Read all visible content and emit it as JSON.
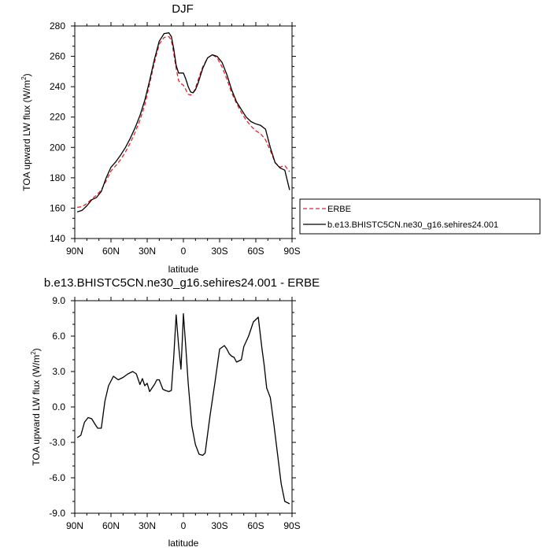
{
  "chart_data": [
    {
      "type": "line",
      "title": "DJF",
      "xlabel": "latitude",
      "ylabel_main": "TOA upward LW flux (W/m",
      "ylabel_sup": "2",
      "ylabel_close": ")",
      "xlim": [
        -90,
        90
      ],
      "ylim": [
        140,
        280
      ],
      "xticks": [
        {
          "value": -90,
          "label": "90N"
        },
        {
          "value": -60,
          "label": "60N"
        },
        {
          "value": -30,
          "label": "30N"
        },
        {
          "value": 0,
          "label": "0"
        },
        {
          "value": 30,
          "label": "30S"
        },
        {
          "value": 60,
          "label": "60S"
        },
        {
          "value": 90,
          "label": "90S"
        }
      ],
      "yticks": [
        {
          "value": 140,
          "label": "140"
        },
        {
          "value": 160,
          "label": "160"
        },
        {
          "value": 180,
          "label": "180"
        },
        {
          "value": 200,
          "label": "200"
        },
        {
          "value": 220,
          "label": "220"
        },
        {
          "value": 240,
          "label": "240"
        },
        {
          "value": 260,
          "label": "260"
        },
        {
          "value": 280,
          "label": "280"
        }
      ],
      "legend": [
        {
          "label": "ERBE",
          "color": "#e8202a",
          "dash": true
        },
        {
          "label": "b.e13.BHISTC5CN.ne30_g16.sehires24.001",
          "color": "#000000",
          "dash": false
        }
      ],
      "series": [
        {
          "name": "ERBE",
          "color": "#e8202a",
          "dash": true,
          "x": [
            -88,
            -84,
            -80,
            -76,
            -72,
            -68,
            -64,
            -60,
            -56,
            -52,
            -48,
            -44,
            -40,
            -36,
            -32,
            -28,
            -24,
            -20,
            -16,
            -12,
            -10,
            -8,
            -6,
            -4,
            -2,
            0,
            2,
            4,
            6,
            8,
            10,
            12,
            16,
            20,
            24,
            28,
            32,
            36,
            40,
            44,
            48,
            52,
            56,
            60,
            64,
            68,
            72,
            76,
            80,
            84,
            88
          ],
          "values": [
            160.5,
            161,
            163,
            166,
            168.5,
            172,
            178,
            184.5,
            188,
            192,
            197,
            203,
            210,
            218,
            228,
            242,
            256,
            268,
            272.5,
            273,
            270.5,
            262,
            252,
            244,
            242,
            241,
            238,
            235,
            234.5,
            236,
            239,
            244,
            253,
            259,
            261,
            259,
            253,
            245,
            236,
            229,
            223,
            218,
            214,
            211,
            209,
            205,
            198,
            190,
            187,
            188,
            184
          ]
        },
        {
          "name": "b.e13.BHISTC5CN.ne30_g16.sehires24.001",
          "color": "#000000",
          "dash": false,
          "x": [
            -88,
            -84,
            -80,
            -76,
            -72,
            -68,
            -64,
            -60,
            -56,
            -52,
            -48,
            -44,
            -40,
            -36,
            -32,
            -28,
            -24,
            -20,
            -16,
            -12,
            -10,
            -8,
            -6,
            -4,
            -2,
            0,
            2,
            4,
            6,
            8,
            10,
            12,
            16,
            20,
            24,
            28,
            32,
            36,
            40,
            44,
            48,
            52,
            56,
            60,
            64,
            68,
            72,
            76,
            80,
            84,
            88
          ],
          "values": [
            157.5,
            158.5,
            161.5,
            165.5,
            167,
            171,
            180,
            187,
            190.5,
            195,
            200,
            206,
            213,
            221,
            231,
            244,
            258,
            270,
            275,
            275.5,
            273,
            265,
            254,
            249,
            249,
            249,
            245,
            240,
            236.5,
            236,
            238,
            242,
            252,
            259,
            261,
            260,
            256,
            248,
            238,
            230,
            225,
            220,
            217,
            215.5,
            214.5,
            212,
            200,
            190,
            186.5,
            185,
            172
          ]
        }
      ]
    },
    {
      "type": "line",
      "title": "b.e13.BHISTC5CN.ne30_g16.sehires24.001 - ERBE",
      "xlabel": "latitude",
      "ylabel_main": "TOA upward LW flux (W/m",
      "ylabel_sup": "2",
      "ylabel_close": ")",
      "xlim": [
        -90,
        90
      ],
      "ylim": [
        -9,
        9
      ],
      "xticks": [
        {
          "value": -90,
          "label": "90N"
        },
        {
          "value": -60,
          "label": "60N"
        },
        {
          "value": -30,
          "label": "30N"
        },
        {
          "value": 0,
          "label": "0"
        },
        {
          "value": 30,
          "label": "30S"
        },
        {
          "value": 60,
          "label": "60S"
        },
        {
          "value": 90,
          "label": "90S"
        }
      ],
      "yticks": [
        {
          "value": -9,
          "label": "-9.0"
        },
        {
          "value": -6,
          "label": "-6.0"
        },
        {
          "value": -3,
          "label": "-3.0"
        },
        {
          "value": 0,
          "label": "0.0"
        },
        {
          "value": 3,
          "label": "3.0"
        },
        {
          "value": 6,
          "label": "6.0"
        },
        {
          "value": 9,
          "label": "9.0"
        }
      ],
      "series": [
        {
          "name": "b.e13.BHISTC5CN.ne30_g16.sehires24.001 - ERBE",
          "color": "#000000",
          "dash": false,
          "x": [
            -88,
            -85,
            -82,
            -79,
            -76,
            -73,
            -71,
            -68,
            -65,
            -62,
            -58,
            -54,
            -50,
            -46,
            -42,
            -39,
            -36,
            -34,
            -32,
            -30,
            -28,
            -26,
            -24,
            -22,
            -20,
            -17,
            -15,
            -12,
            -10,
            -8,
            -6,
            -4,
            -2,
            -1,
            0,
            2,
            4,
            7,
            10,
            13,
            16,
            18,
            22,
            26,
            30,
            34,
            36,
            38,
            40,
            42,
            44,
            46,
            48,
            50,
            54,
            58,
            62,
            65,
            67,
            69,
            72,
            75,
            78,
            81,
            84,
            86,
            88
          ],
          "values": [
            -2.6,
            -2.4,
            -1.3,
            -0.9,
            -1.0,
            -1.5,
            -1.8,
            -1.8,
            0.5,
            1.8,
            2.6,
            2.3,
            2.5,
            2.8,
            3.0,
            2.8,
            1.9,
            2.4,
            1.8,
            2.0,
            1.3,
            1.6,
            1.9,
            2.3,
            2.3,
            1.5,
            1.4,
            1.3,
            1.4,
            4.2,
            7.8,
            5.2,
            3.2,
            5.5,
            7.9,
            5.0,
            2.0,
            -1.6,
            -3.2,
            -4.0,
            -4.1,
            -3.9,
            -0.8,
            2.0,
            4.9,
            5.2,
            4.9,
            4.5,
            4.3,
            4.2,
            3.8,
            3.9,
            4.0,
            5.1,
            6.0,
            7.2,
            7.6,
            5.0,
            3.5,
            1.6,
            0.8,
            -1.5,
            -4.0,
            -6.5,
            -8.0,
            -8.1,
            -8.2
          ]
        }
      ]
    }
  ]
}
